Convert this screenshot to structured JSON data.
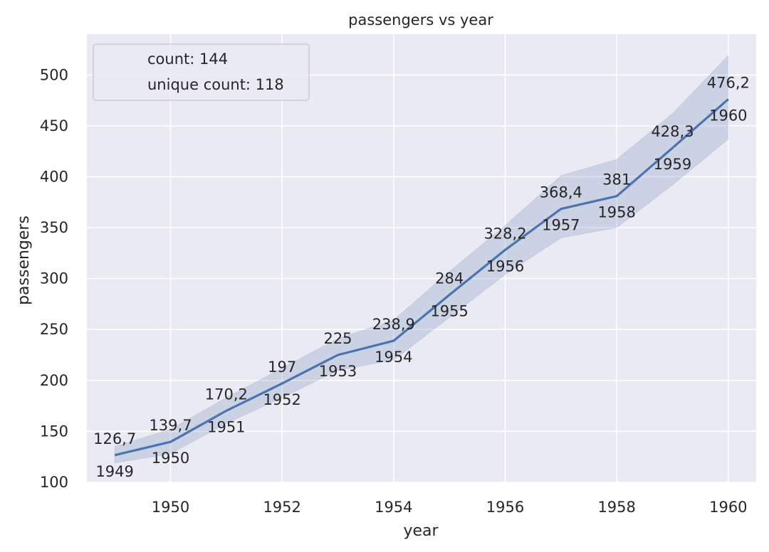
{
  "chart_data": {
    "type": "line",
    "title": "passengers vs year",
    "xlabel": "year",
    "ylabel": "passengers",
    "xlim": [
      1948.5,
      1960.5
    ],
    "ylim": [
      100,
      540
    ],
    "x_ticks": [
      1950,
      1952,
      1954,
      1956,
      1958,
      1960
    ],
    "y_ticks": [
      100,
      150,
      200,
      250,
      300,
      350,
      400,
      450,
      500
    ],
    "grid": true,
    "legend_placement": "top-left",
    "legend_entries": [
      "count: 144",
      "unique count: 118"
    ],
    "line_color": "#4c72b0",
    "band_color": "#4c72b0",
    "background_color": "#eaeaf2",
    "series": [
      {
        "x": [
          1949,
          1950,
          1951,
          1952,
          1953,
          1954,
          1955,
          1956,
          1957,
          1958,
          1959,
          1960
        ],
        "values": [
          126.7,
          139.7,
          170.2,
          197,
          225,
          238.9,
          284,
          328.2,
          368.4,
          381,
          428.3,
          476.2
        ],
        "ci_lower": [
          119,
          128,
          158,
          183,
          210,
          220,
          262,
          304,
          340,
          350,
          392,
          437
        ],
        "ci_upper": [
          135,
          152,
          183,
          212,
          241,
          259,
          307,
          352,
          401,
          417,
          462,
          519
        ],
        "value_labels": [
          "126,7",
          "139,7",
          "170,2",
          "197",
          "225",
          "238,9",
          "284",
          "328,2",
          "368,4",
          "381",
          "428,3",
          "476,2"
        ],
        "year_labels": [
          "1949",
          "1950",
          "1951",
          "1952",
          "1953",
          "1954",
          "1955",
          "1956",
          "1957",
          "1958",
          "1959",
          "1960"
        ]
      }
    ]
  }
}
